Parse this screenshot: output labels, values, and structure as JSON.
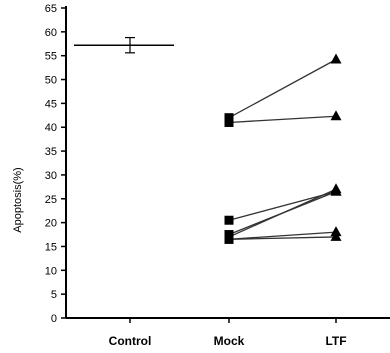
{
  "chart_data": {
    "type": "scatter",
    "title": "",
    "xlabel": "",
    "ylabel": "Apoptosis(%)",
    "ylim": [
      0,
      65
    ],
    "yticks": [
      0,
      5,
      10,
      15,
      20,
      25,
      30,
      35,
      40,
      45,
      50,
      55,
      60,
      65
    ],
    "categories": [
      "Control",
      "Mock",
      "LTF"
    ],
    "grid": false,
    "control": {
      "mean": 57.2,
      "error_low": 55.6,
      "error_high": 58.8
    },
    "paired": [
      {
        "mock": 42.0,
        "ltf": 54.2
      },
      {
        "mock": 41.0,
        "ltf": 42.3
      },
      {
        "mock": 20.5,
        "ltf": 26.5
      },
      {
        "mock": 17.5,
        "ltf": 26.5
      },
      {
        "mock": 17.0,
        "ltf": 27.0
      },
      {
        "mock": 16.5,
        "ltf": 18.0
      },
      {
        "mock": 16.5,
        "ltf": 17.0
      }
    ],
    "markers": {
      "mock": "square",
      "ltf": "triangle"
    },
    "colors": {
      "ink": "#000000",
      "line": "#333333"
    }
  }
}
